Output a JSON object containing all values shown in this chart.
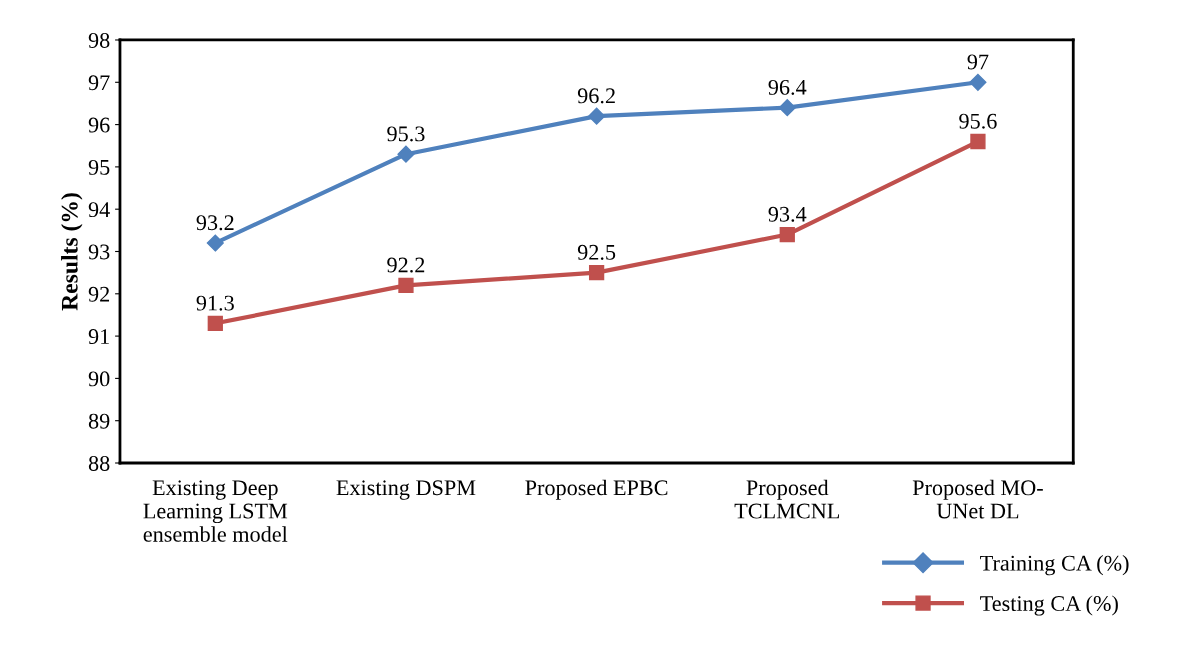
{
  "chart_data": {
    "type": "line",
    "ylabel": "Results (%)",
    "categories": [
      "Existing Deep\nLearning LSTM\nensemble model",
      "Existing DSPM",
      "Proposed EPBC",
      "Proposed\nTCLMCNL",
      "Proposed MO-\nUNet DL"
    ],
    "series": [
      {
        "name": "Training CA (%)",
        "color": "#4f81bd",
        "marker": "diamond",
        "values": [
          93.2,
          95.3,
          96.2,
          96.4,
          97
        ]
      },
      {
        "name": "Testing CA (%)",
        "color": "#c0504d",
        "marker": "square",
        "values": [
          91.3,
          92.2,
          92.5,
          93.4,
          95.6
        ]
      }
    ],
    "ylim": [
      88,
      98
    ],
    "yticks": [
      88,
      89,
      90,
      91,
      92,
      93,
      94,
      95,
      96,
      97,
      98
    ],
    "grid": false,
    "legend": "bottom right",
    "data_labels": true,
    "line_style": "solid"
  }
}
